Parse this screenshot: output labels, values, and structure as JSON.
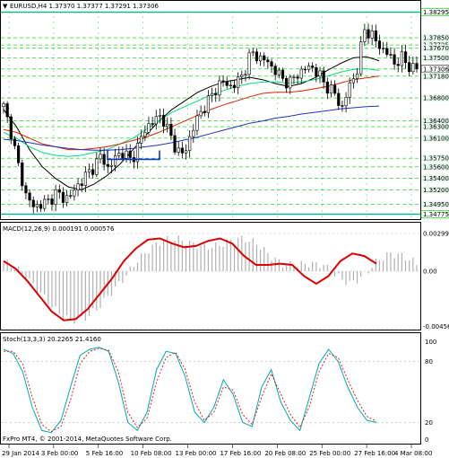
{
  "terminal": {
    "symbol_header": "EURUSD,H4  1.37370 1.37377 1.37291 1.37306",
    "copyright": "FxPro MT4, © 2001-2014, MetaQuotes Software Corp."
  },
  "colors": {
    "background": "#ffffff",
    "candle": "#000000",
    "grid": "#00cc00",
    "ma_fast": "#000000",
    "ma_green": "#00dd77",
    "ma_red": "#dd2200",
    "ma_blue": "#2233bb",
    "macd_line": "#dd0000",
    "macd_hist": "#b0b0b0",
    "stoch_main": "#00aaaa",
    "stoch_signal": "#dd2222",
    "price_tag": "#00bb88",
    "marker": "#1133cc"
  },
  "chart_data": [
    {
      "type": "candlestick",
      "title": "EURUSD,H4",
      "ohlc_header": {
        "open": 1.3737,
        "high": 1.37377,
        "low": 1.37291,
        "close": 1.37306
      },
      "y_axis_labels": [
        "1.38295",
        "1.37850",
        "1.37725",
        "1.37670",
        "1.37500",
        "1.37306",
        "1.37180",
        "1.36800",
        "1.36400",
        "1.36300",
        "1.36100",
        "1.35750",
        "1.35600",
        "1.35400",
        "1.35200",
        "1.34950",
        "1.34775"
      ],
      "ylim": [
        1.3472,
        1.3832
      ],
      "x_tick_labels": [
        "29 Jan 2014",
        "3 Feb 00:00",
        "5 Feb 16:00",
        "10 Feb 08:00",
        "13 Feb 00:00",
        "17 Feb 16:00",
        "20 Feb 08:00",
        "25 Feb 00:00",
        "27 Feb 16:00",
        "4 Mar 08:00"
      ],
      "close_path": [
        1.3665,
        1.362,
        1.356,
        1.351,
        1.349,
        1.3495,
        1.35,
        1.3515,
        1.3505,
        1.351,
        1.353,
        1.3545,
        1.356,
        1.358,
        1.3555,
        1.358,
        1.3585,
        1.357,
        1.36,
        1.363,
        1.364,
        1.365,
        1.362,
        1.359,
        1.358,
        1.362,
        1.365,
        1.367,
        1.369,
        1.371,
        1.37,
        1.3705,
        1.3725,
        1.376,
        1.375,
        1.3745,
        1.373,
        1.3715,
        1.3705,
        1.372,
        1.373,
        1.3735,
        1.372,
        1.37,
        1.369,
        1.366,
        1.37,
        1.3725,
        1.38,
        1.379,
        1.377,
        1.376,
        1.374,
        1.375,
        1.3735,
        1.3731
      ],
      "moving_averages": [
        {
          "color": "black",
          "values": [
            1.366,
            1.363,
            1.359,
            1.356,
            1.354,
            1.3525,
            1.352,
            1.353,
            1.3545,
            1.3565,
            1.359,
            1.3615,
            1.364,
            1.366,
            1.3675,
            1.369,
            1.37,
            1.3708,
            1.3712,
            1.3716,
            1.3712,
            1.3705,
            1.37,
            1.3705,
            1.3715,
            1.3728,
            1.374,
            1.375,
            1.3752,
            1.3745
          ]
        },
        {
          "color": "green",
          "values": [
            1.362,
            1.361,
            1.3595,
            1.3585,
            1.358,
            1.3578,
            1.358,
            1.3585,
            1.359,
            1.36,
            1.361,
            1.3625,
            1.364,
            1.3655,
            1.3665,
            1.3675,
            1.3685,
            1.3693,
            1.37,
            1.3705,
            1.3708,
            1.3708,
            1.3706,
            1.3708,
            1.3712,
            1.3718,
            1.3725,
            1.373,
            1.3731,
            1.3728
          ]
        },
        {
          "color": "red",
          "values": [
            1.3625,
            1.362,
            1.361,
            1.36,
            1.3595,
            1.359,
            1.359,
            1.3592,
            1.3595,
            1.36,
            1.3606,
            1.3612,
            1.362,
            1.363,
            1.364,
            1.365,
            1.366,
            1.3668,
            1.3675,
            1.3682,
            1.3688,
            1.369,
            1.369,
            1.3692,
            1.3696,
            1.37,
            1.3706,
            1.3712,
            1.3715,
            1.3718
          ]
        },
        {
          "color": "blue",
          "values": [
            1.3608,
            1.3606,
            1.3602,
            1.3598,
            1.3595,
            1.3592,
            1.359,
            1.3589,
            1.3589,
            1.359,
            1.3592,
            1.3595,
            1.3598,
            1.3602,
            1.3607,
            1.3612,
            1.3618,
            1.3624,
            1.363,
            1.3636,
            1.364,
            1.3645,
            1.3648,
            1.3652,
            1.3655,
            1.3658,
            1.3661,
            1.3663,
            1.3665,
            1.3666
          ]
        }
      ],
      "range_marker": {
        "price": 1.3573
      }
    },
    {
      "type": "macd",
      "title": "MACD(12,26,9) 0.000191 0.000576",
      "y_axis_labels": [
        "0.00299",
        "0.00",
        "-0.00456"
      ],
      "ylim": [
        -0.00456,
        0.00299
      ],
      "signal_values": [
        0.0008,
        0.0002,
        -0.0008,
        -0.002,
        -0.0032,
        -0.0039,
        -0.0038,
        -0.003,
        -0.0018,
        -0.0006,
        0.0008,
        0.0018,
        0.0025,
        0.0026,
        0.0022,
        0.0019,
        0.002,
        0.0024,
        0.0026,
        0.0022,
        0.0012,
        0.0005,
        0.0005,
        0.0006,
        0.0005,
        -0.0004,
        -0.001,
        -0.0004,
        0.0008,
        0.0014,
        0.0012,
        0.0006
      ]
    },
    {
      "type": "stochastic",
      "title": "Stoch(13,3,3) 20.2265 21.4160",
      "y_axis_labels": [
        "100",
        "80",
        "20",
        "0"
      ],
      "ylim": [
        0,
        100
      ],
      "main_values": [
        92,
        88,
        70,
        35,
        12,
        10,
        22,
        55,
        86,
        92,
        94,
        90,
        60,
        20,
        12,
        30,
        72,
        90,
        88,
        65,
        30,
        20,
        35,
        62,
        48,
        20,
        16,
        55,
        72,
        40,
        22,
        12,
        45,
        78,
        92,
        80,
        55,
        35,
        22,
        20
      ],
      "signal_values": [
        90,
        90,
        78,
        45,
        18,
        11,
        16,
        42,
        78,
        90,
        93,
        91,
        70,
        30,
        15,
        24,
        60,
        84,
        89,
        72,
        40,
        22,
        30,
        55,
        52,
        28,
        18,
        45,
        68,
        48,
        28,
        15,
        36,
        70,
        88,
        84,
        62,
        42,
        26,
        21
      ]
    }
  ]
}
